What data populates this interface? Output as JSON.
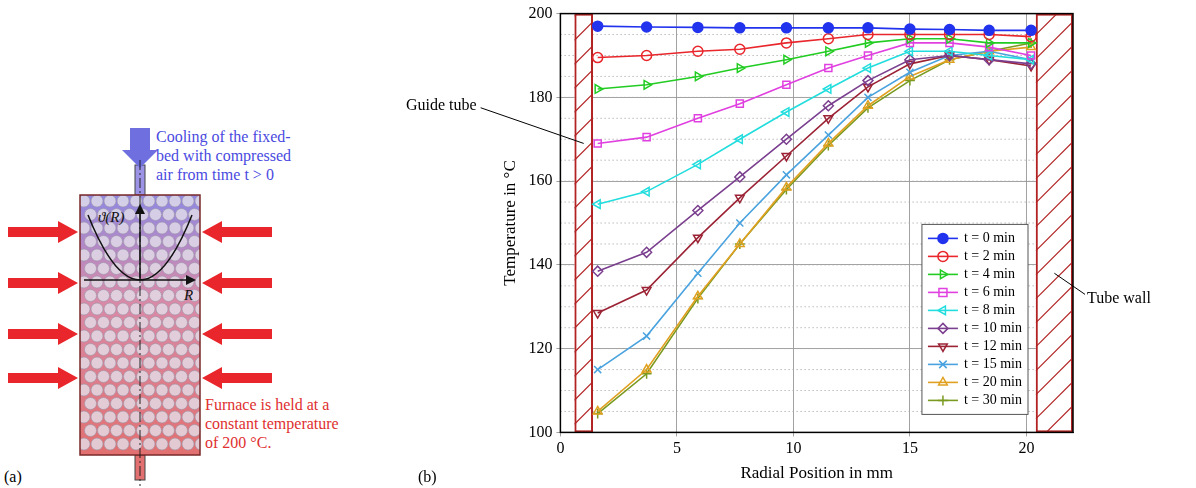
{
  "panel_a": {
    "label": "(a)",
    "top_text": [
      "Cooling of the fixed-",
      "bed with compressed",
      "air from time t > 0"
    ],
    "bottom_text": [
      "Furnace is held at a",
      "constant temperature",
      "of 200 °C."
    ],
    "curve_label": "ϑ(R)",
    "axis_label": "R"
  },
  "panel_b_label": "(b)",
  "chart_data": {
    "type": "line",
    "x_label": "Radial Position in mm",
    "y_label": "Temperature in °C",
    "xlim": [
      0,
      22
    ],
    "xticks": [
      0,
      5,
      10,
      15,
      20
    ],
    "ylim": [
      100,
      200
    ],
    "yticks": [
      100,
      120,
      140,
      160,
      180,
      200
    ],
    "grid": true,
    "legend": "lower right",
    "annotations": [
      {
        "text": "Guide tube",
        "x": [
          0.6,
          1.4
        ]
      },
      {
        "text": "Tube wall",
        "x": [
          20.4,
          22
        ]
      }
    ],
    "x": [
      1.6,
      3.7,
      5.9,
      7.7,
      9.7,
      11.5,
      13.2,
      15.0,
      16.7,
      18.4,
      20.2
    ],
    "series": [
      {
        "name": "t = 0 min",
        "color": "#2233ee",
        "marker": "circle",
        "values": [
          197,
          196.8,
          196.7,
          196.6,
          196.6,
          196.6,
          196.6,
          196.3,
          196.2,
          196,
          196
        ]
      },
      {
        "name": "t = 2 min",
        "color": "#e8262b",
        "marker": "circle_open",
        "values": [
          189.5,
          190,
          191,
          191.5,
          193,
          194,
          195,
          195,
          195,
          195,
          194.5
        ]
      },
      {
        "name": "t = 4 min",
        "color": "#22cc22",
        "marker": "triangle_right_open",
        "values": [
          182,
          183,
          185,
          187,
          189,
          191,
          193,
          194,
          194,
          193,
          193
        ]
      },
      {
        "name": "t = 6 min",
        "color": "#e040e0",
        "marker": "square_open",
        "values": [
          169,
          170.5,
          175,
          178.5,
          183,
          187,
          190,
          193,
          193,
          192,
          190
        ]
      },
      {
        "name": "t = 8 min",
        "color": "#22dddd",
        "marker": "triangle_left_open",
        "values": [
          154.5,
          157.5,
          164,
          170,
          176.5,
          182,
          187,
          191,
          191,
          190,
          189
        ]
      },
      {
        "name": "t = 10 min",
        "color": "#7b3f8f",
        "marker": "diamond_open",
        "values": [
          138.5,
          143,
          153,
          161,
          170,
          178,
          184,
          189,
          190,
          189,
          188
        ]
      },
      {
        "name": "t = 12 min",
        "color": "#9b2335",
        "marker": "triangle_down_open",
        "values": [
          128.5,
          134,
          146.5,
          156,
          166,
          175,
          182.5,
          188,
          190,
          189,
          187.5
        ]
      },
      {
        "name": "t = 15 min",
        "color": "#4aa3df",
        "marker": "x",
        "values": [
          115,
          123,
          138,
          150,
          161.5,
          171,
          180,
          186,
          190,
          191,
          189
        ]
      },
      {
        "name": "t = 20 min",
        "color": "#e0a020",
        "marker": "triangle_up_open",
        "values": [
          105,
          115,
          132.5,
          145,
          158.5,
          169,
          178,
          185,
          189,
          191,
          192
        ]
      },
      {
        "name": "t = 30 min",
        "color": "#7a9a20",
        "marker": "plus",
        "values": [
          104.5,
          114,
          132,
          145,
          158,
          168.5,
          177.5,
          184,
          189,
          191,
          193
        ]
      }
    ]
  }
}
